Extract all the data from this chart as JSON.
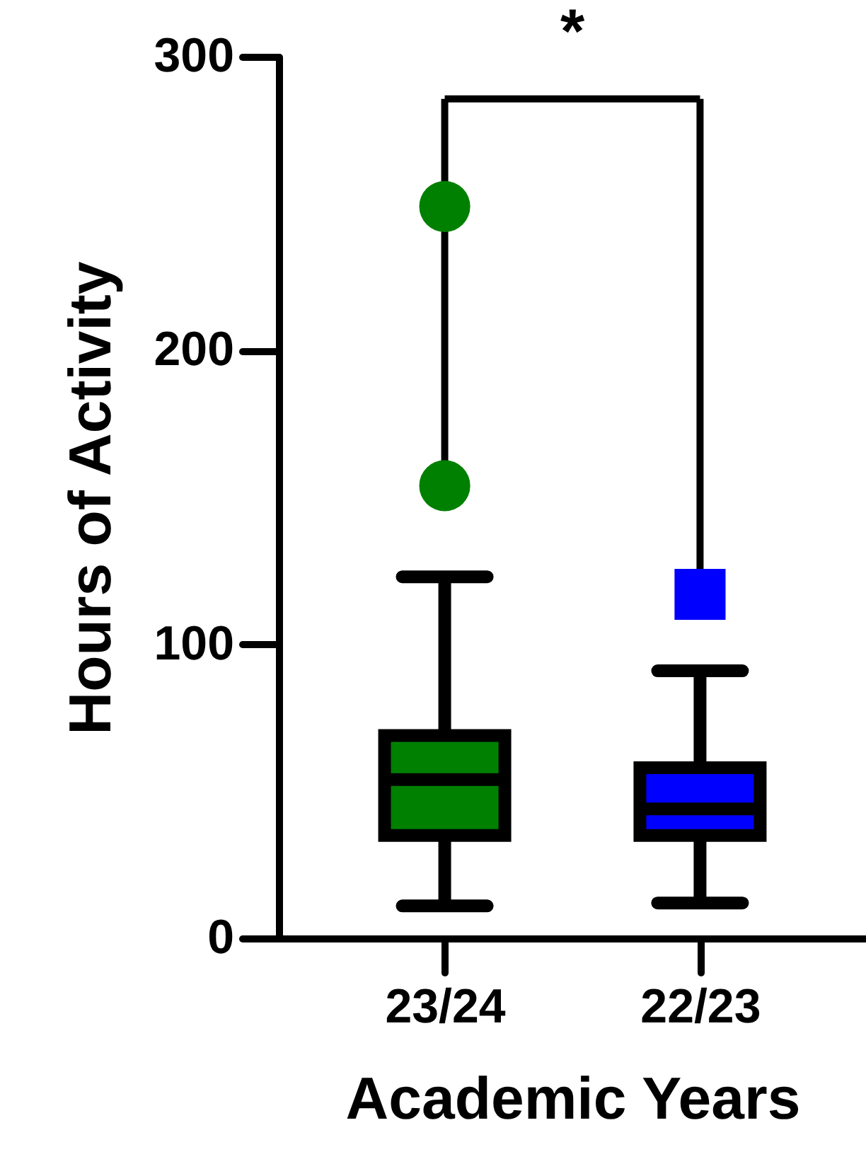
{
  "chart_data": {
    "type": "box",
    "categories": [
      "23/24",
      "22/23"
    ],
    "xlabel": "Academic Years",
    "ylabel": "Hours of Activity",
    "ylim": [
      0,
      300
    ],
    "yticks": [
      0,
      100,
      200,
      300
    ],
    "series": [
      {
        "color": "#008000",
        "marker": "circle",
        "boxes": [
          {
            "low": 11,
            "q1": 35,
            "median": 54,
            "q3": 69,
            "high": 123,
            "outliers": [
              154,
              249
            ]
          },
          null
        ]
      },
      {
        "color": "#0000ff",
        "marker": "square",
        "boxes": [
          null,
          {
            "low": 12,
            "q1": 35,
            "median": 44,
            "q3": 58,
            "high": 91,
            "outliers": [
              117
            ]
          }
        ]
      }
    ],
    "annotations": [
      "*"
    ]
  }
}
